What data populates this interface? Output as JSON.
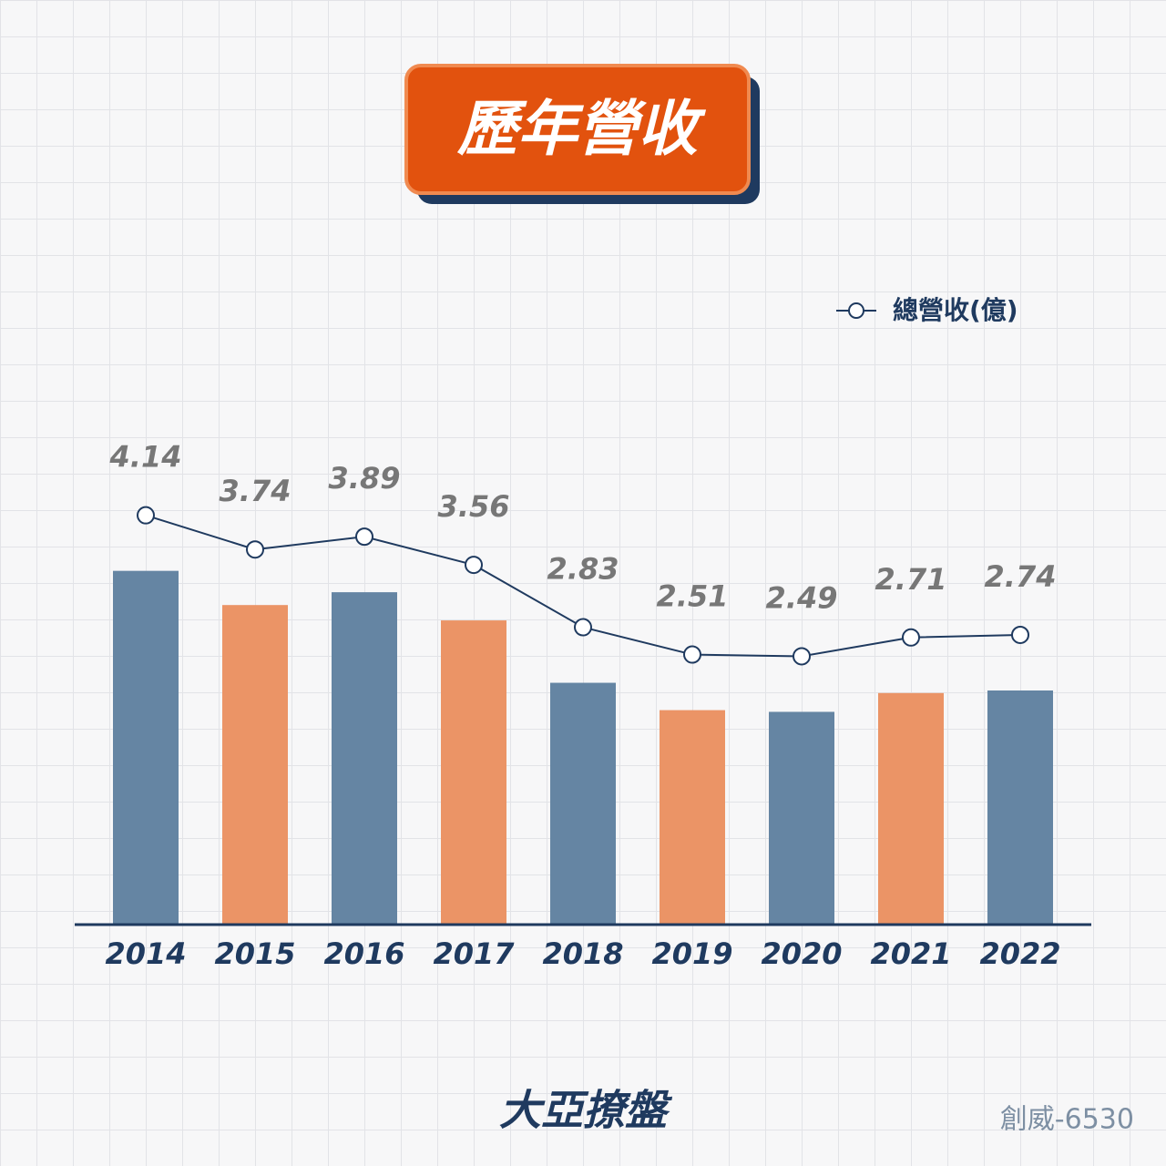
{
  "chart_data": {
    "type": "bar_line",
    "title": "歷年營收",
    "categories": [
      "2014",
      "2015",
      "2016",
      "2017",
      "2018",
      "2019",
      "2020",
      "2021",
      "2022"
    ],
    "series": [
      {
        "name": "總營收(億)",
        "color": "#1f3a5f",
        "values": [
          4.14,
          3.74,
          3.89,
          3.56,
          2.83,
          2.51,
          2.49,
          2.71,
          2.74
        ]
      }
    ],
    "bar_colors": [
      "#6585a3",
      "#eb9466",
      "#6585a3",
      "#eb9466",
      "#6585a3",
      "#eb9466",
      "#6585a3",
      "#eb9466",
      "#6585a3"
    ],
    "ylim": [
      0,
      5
    ],
    "legend": "top-right",
    "brand": "大亞撩盤",
    "footer": "創威-6530"
  }
}
